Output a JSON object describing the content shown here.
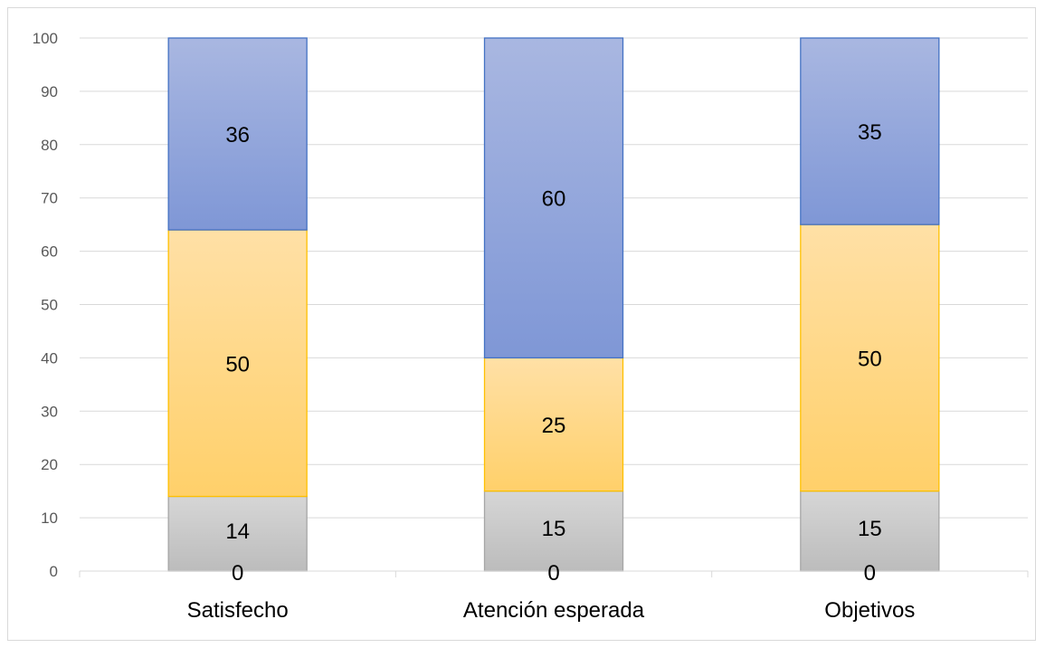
{
  "chart_data": {
    "type": "bar",
    "stacked": true,
    "categories": [
      "Satisfecho",
      "Atención esperada",
      "Objetivos"
    ],
    "series": [
      {
        "values": [
          14,
          15,
          15
        ],
        "color": "#c0c0c0"
      },
      {
        "values": [
          50,
          25,
          50
        ],
        "color": "#ffd27f"
      },
      {
        "values": [
          36,
          60,
          35
        ],
        "color": "#8ea3d8"
      }
    ],
    "extra_labels": [
      "0",
      "0",
      "0"
    ],
    "ylim": [
      0,
      100
    ],
    "yticks": [
      0,
      10,
      20,
      30,
      40,
      50,
      60,
      70,
      80,
      90,
      100
    ],
    "grid": true,
    "title": "",
    "xlabel": "",
    "ylabel": ""
  }
}
